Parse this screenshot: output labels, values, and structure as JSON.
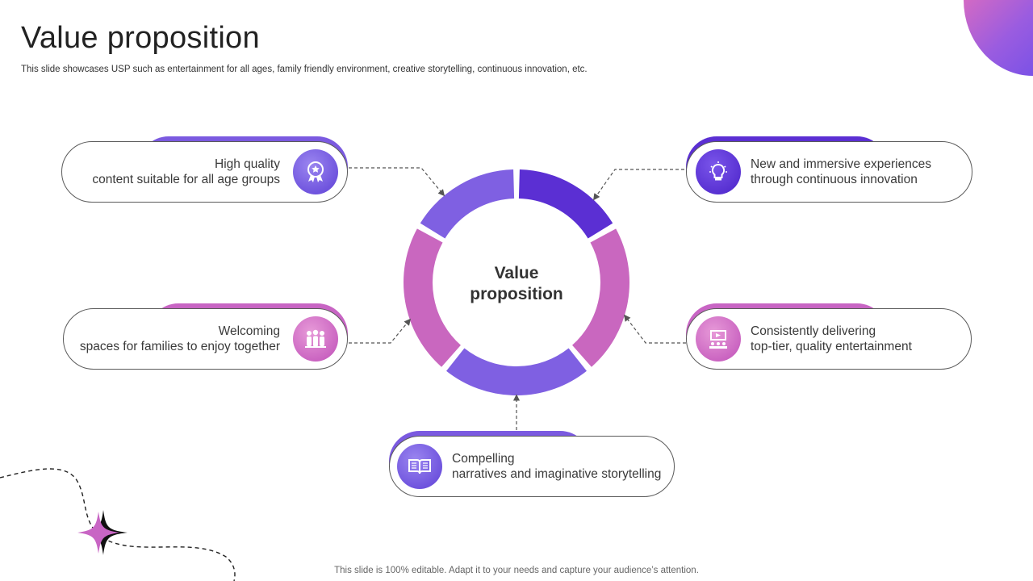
{
  "page": {
    "title": "Value proposition",
    "subtitle": "This slide showcases USP such as entertainment for all ages, family friendly environment, creative storytelling, continuous innovation, etc.",
    "footer": "This slide is 100% editable. Adapt it to your needs and capture your audience’s attention."
  },
  "center": {
    "line1": "Value",
    "line2": "proposition"
  },
  "items": [
    {
      "line1": "High quality",
      "line2": "content suitable for all age groups",
      "icon": "award-badge-icon",
      "color": "#7b5ae0"
    },
    {
      "line1": "New and immersive experiences",
      "line2": "through continuous innovation",
      "icon": "lightbulb-icon",
      "color": "#5b2fd3"
    },
    {
      "line1": "Welcoming",
      "line2": "spaces for families to enjoy together",
      "icon": "family-icon",
      "color": "#c865c4"
    },
    {
      "line1": "Consistently delivering",
      "line2": "top-tier, quality entertainment",
      "icon": "theater-screen-icon",
      "color": "#c865c4"
    },
    {
      "line1": "Compelling",
      "line2": "narratives and imaginative storytelling",
      "icon": "open-book-icon",
      "color": "#7b5ae0"
    }
  ],
  "colors": {
    "violet": "#5b2fd3",
    "lavender": "#7f60e2",
    "pink": "#c967bf",
    "outline": "#5a5a5a"
  }
}
